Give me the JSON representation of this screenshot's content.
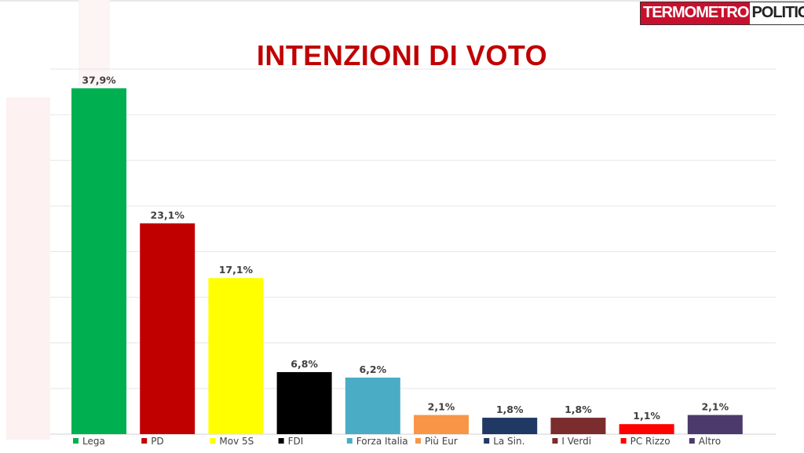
{
  "logo": {
    "part1": "TERMOMETRO",
    "part2": "POLITICO"
  },
  "chart_data": {
    "type": "bar",
    "title": "INTENZIONI DI VOTO",
    "categories": [
      "Lega",
      "PD",
      "Mov 5S",
      "FDI",
      "Forza Italia",
      "Più Eur",
      "La Sin.",
      "I Verdi",
      "PC Rizzo",
      "Altro"
    ],
    "values": [
      37.9,
      23.1,
      17.1,
      6.8,
      6.2,
      2.1,
      1.8,
      1.8,
      1.1,
      2.1
    ],
    "value_labels": [
      "37,9%",
      "23,1%",
      "17,1%",
      "6,8%",
      "6,2%",
      "2,1%",
      "1,8%",
      "1,8%",
      "1,1%",
      "2,1%"
    ],
    "colors": [
      "#00b050",
      "#c00000",
      "#ffff00",
      "#000000",
      "#4bacc6",
      "#f79646",
      "#1f3864",
      "#7b2c2c",
      "#ff0000",
      "#4b3a6b"
    ],
    "ylim": [
      0,
      40
    ],
    "grid": true,
    "legend_position": "bottom"
  }
}
